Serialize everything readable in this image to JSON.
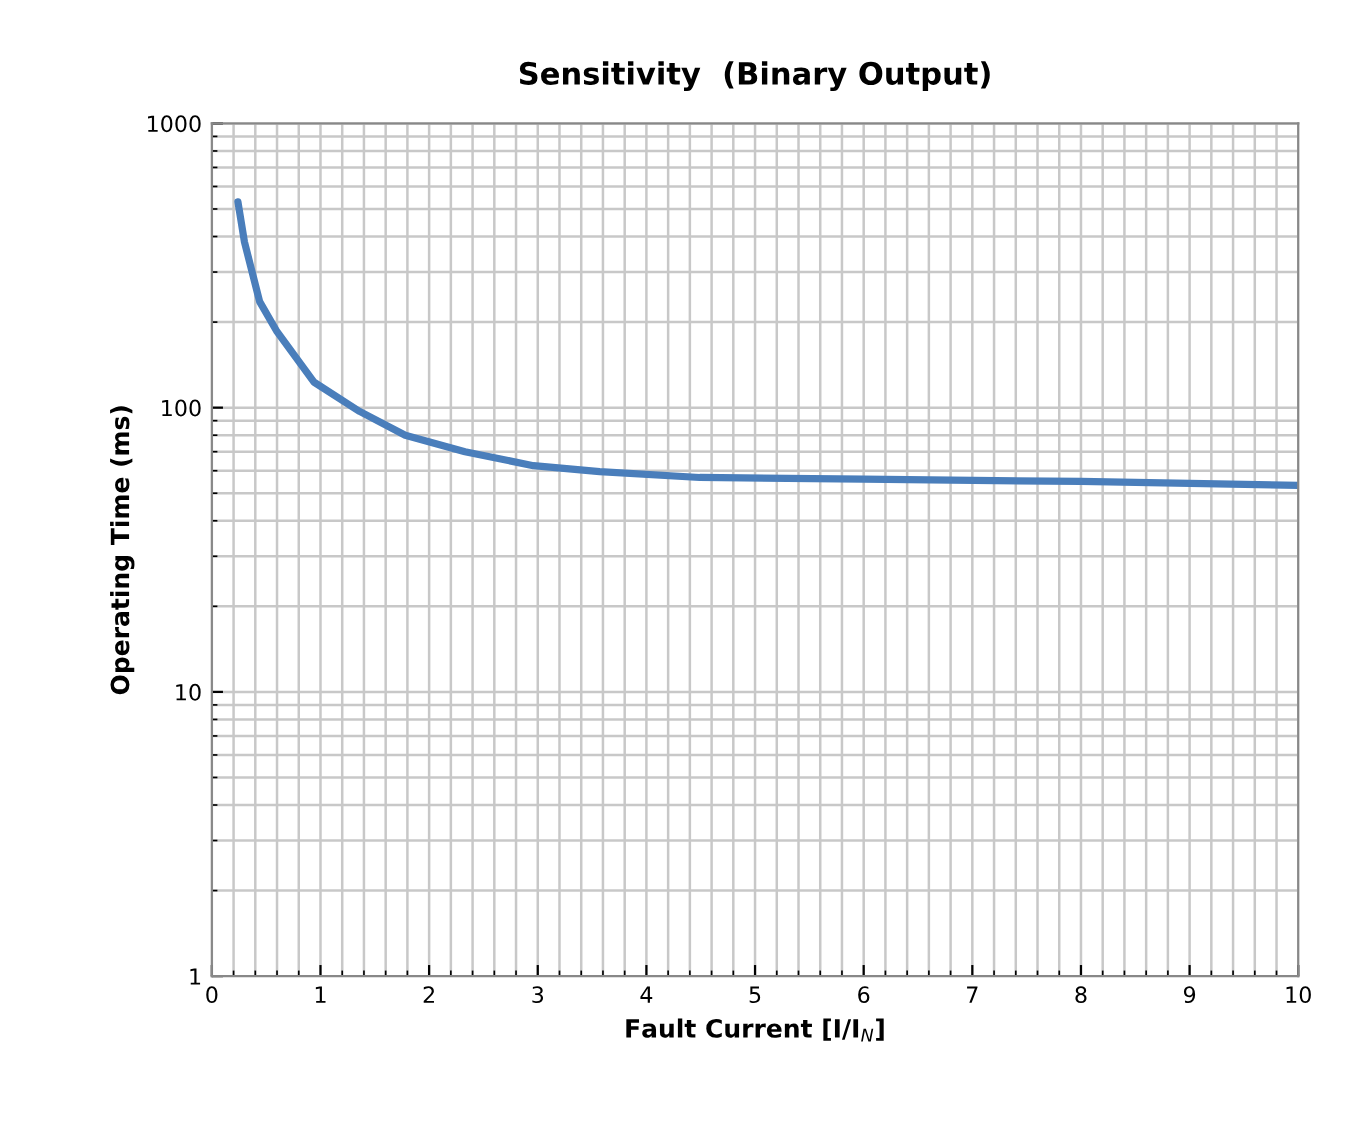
{
  "chart_data": {
    "type": "line",
    "title": "Sensitivity  (Binary Output)",
    "xlabel": "Fault Current [I/I$_{N}$]",
    "ylabel": "Operating Time (ms)",
    "log": "y",
    "grid": true,
    "marker": "none",
    "line_style": "solid",
    "xlim": [
      0,
      10
    ],
    "xticks": [
      0,
      1,
      2,
      3,
      4,
      5,
      6,
      7,
      8,
      9,
      10
    ],
    "ylim": [
      1,
      1000
    ],
    "yticks": [
      1,
      10,
      100,
      1000
    ],
    "series": [
      {
        "color": "#4a7ebb",
        "x": [
          0.24,
          0.3,
          0.44,
          0.6,
          0.94,
          1.36,
          1.78,
          2.33,
          2.96,
          3.57,
          4.49,
          6,
          8,
          10
        ],
        "values": [
          530,
          383,
          236,
          185,
          123,
          97,
          80,
          70,
          62.5,
          59.6,
          56.8,
          56,
          55,
          53.3
        ]
      }
    ]
  }
}
